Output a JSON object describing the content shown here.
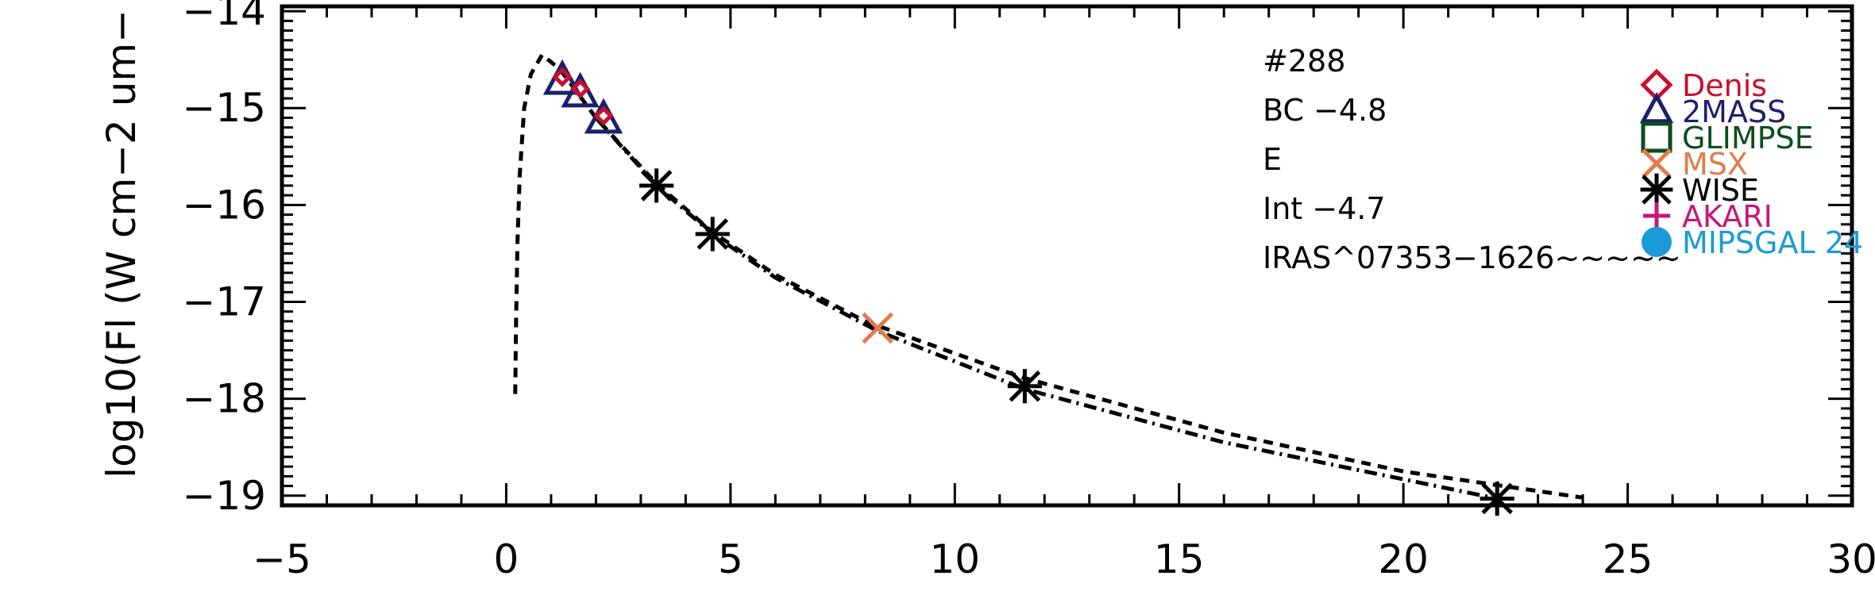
{
  "chart_data": {
    "type": "scatter",
    "title": "",
    "xlabel": "",
    "ylabel": "log10(Fl (W cm−2 um−",
    "xlim": [
      -5,
      30
    ],
    "ylim": [
      -19.1,
      -13.95
    ],
    "xticks": [
      -5,
      0,
      5,
      10,
      15,
      20,
      25,
      30
    ],
    "xtick_labels": [
      "−5",
      "0",
      "5",
      "10",
      "15",
      "20",
      "25",
      "30"
    ],
    "yticks": [
      -14,
      -15,
      -16,
      -17,
      -18,
      -19
    ],
    "ytick_labels": [
      "−14",
      "−15",
      "−16",
      "−17",
      "−18",
      "−19"
    ],
    "grid": false,
    "legend_position": "top-right",
    "annotations": [
      "#288",
      "BC −4.8",
      "E",
      "Int −4.7",
      "IRAS^07353−1626~~~~~"
    ],
    "series": [
      {
        "name": "Denis",
        "marker": "diamond",
        "color": "#c8102e",
        "x": [
          1.25,
          1.65,
          2.17
        ],
        "y": [
          -14.68,
          -14.8,
          -15.08
        ]
      },
      {
        "name": "2MASS",
        "marker": "triangle",
        "color": "#1b1f6e",
        "x": [
          1.25,
          1.65,
          2.17
        ],
        "y": [
          -14.72,
          -14.85,
          -15.12
        ]
      },
      {
        "name": "GLIMPSE",
        "marker": "square",
        "color": "#0b4d1f",
        "x": [],
        "y": []
      },
      {
        "name": "MSX",
        "marker": "x",
        "color": "#e07c4d",
        "x": [
          8.28
        ],
        "y": [
          -17.27
        ]
      },
      {
        "name": "WISE",
        "marker": "asterisk",
        "color": "#000000",
        "x": [
          3.35,
          4.6,
          11.56,
          22.09
        ],
        "y": [
          -15.8,
          -16.3,
          -17.87,
          -19.03
        ]
      },
      {
        "name": "AKARI",
        "marker": "plus",
        "color": "#c2187a",
        "x": [],
        "y": []
      },
      {
        "name": "MIPSGAL 24",
        "marker": "circle",
        "color": "#1a9bd7",
        "x": [],
        "y": []
      }
    ],
    "lines": [
      {
        "style": "dashed",
        "x": [
          0.2,
          0.22,
          0.25,
          0.3,
          0.4,
          0.55,
          0.8,
          1.2,
          2.0,
          3.35,
          4.6,
          6.0,
          8.0,
          11.5,
          16.0,
          20.0,
          24.0
        ],
        "y": [
          -17.95,
          -17.2,
          -16.4,
          -15.7,
          -15.0,
          -14.65,
          -14.45,
          -14.6,
          -15.1,
          -15.78,
          -16.28,
          -16.72,
          -17.2,
          -17.78,
          -18.35,
          -18.75,
          -19.02
        ]
      },
      {
        "style": "dashdot",
        "x": [
          2.0,
          3.35,
          4.6,
          6.0,
          8.28,
          11.56,
          16.0,
          22.09
        ],
        "y": [
          -15.1,
          -15.8,
          -16.3,
          -16.75,
          -17.3,
          -17.9,
          -18.45,
          -19.03
        ]
      }
    ]
  }
}
